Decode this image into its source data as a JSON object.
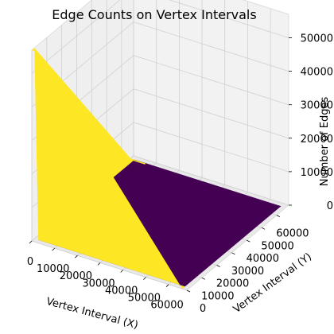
{
  "chart_data": {
    "type": "surface",
    "title": "Edge Counts on Vertex Intervals",
    "xlabel": "Vertex Interval (X)",
    "ylabel": "Vertex Interval (Y)",
    "zlabel": "Number of Edges",
    "x_ticks": [
      "0",
      "10000",
      "20000",
      "30000",
      "40000",
      "50000",
      "60000"
    ],
    "y_ticks": [
      "0",
      "10000",
      "20000",
      "30000",
      "40000",
      "50000",
      "60000"
    ],
    "z_ticks": [
      "0",
      "10000",
      "20000",
      "30000",
      "40000",
      "50000"
    ],
    "xlim": [
      0,
      68000
    ],
    "ylim": [
      0,
      68000
    ],
    "zlim": [
      0,
      57000
    ],
    "colormap": "viridis",
    "colors": {
      "low": "#440154",
      "high": "#fde725",
      "pane": "#f2f2f2",
      "grid": "#d0d0d0"
    },
    "peak_z": 57000,
    "surface": {
      "x": [
        0,
        1750,
        66000
      ],
      "y": [
        0,
        1750,
        66000
      ],
      "z": [
        [
          57000,
          57000,
          0
        ],
        [
          57000,
          0,
          0
        ],
        [
          0,
          0,
          0
        ]
      ]
    },
    "grid": true
  }
}
